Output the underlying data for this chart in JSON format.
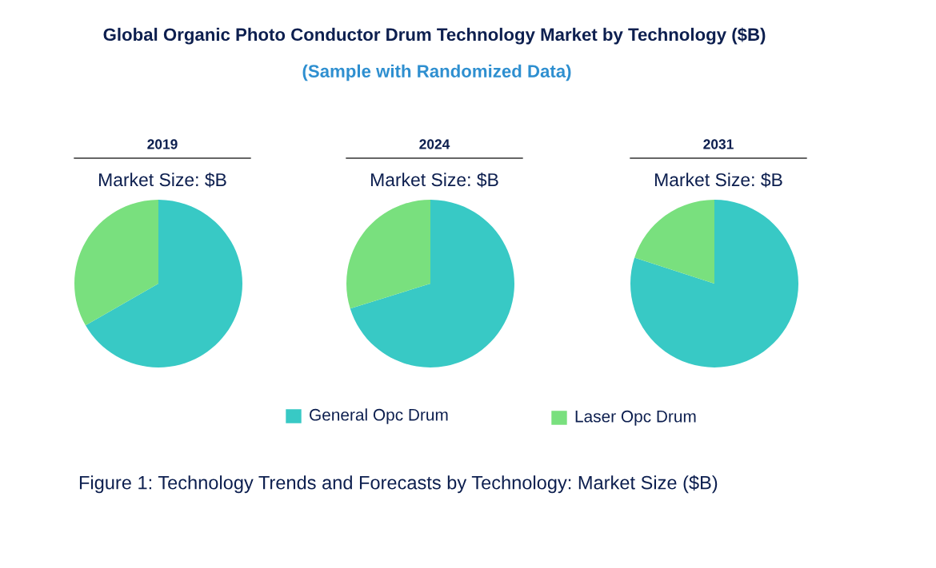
{
  "chart_data": [
    {
      "type": "pie",
      "title": "2019",
      "subtitle": "Market Size: $B",
      "categories": [
        "General Opc Drum",
        "Laser Opc Drum"
      ],
      "values": [
        66.7,
        33.3
      ],
      "colors": [
        "#38c9c5",
        "#79e07e"
      ],
      "legend": "bottom",
      "annotations": [
        "Global Organic Photo Conductor Drum Technology Market by Technology ($B)",
        "(Sample with Randomized Data)",
        "Figure 1: Technology Trends and Forecasts by Technology: Market Size ($B)"
      ]
    },
    {
      "type": "pie",
      "title": "2024",
      "subtitle": "Market Size: $B",
      "categories": [
        null,
        null
      ],
      "values": [
        70.2,
        29.8
      ],
      "colors": [
        "#38c9c5",
        "#79e07e"
      ]
    },
    {
      "type": "pie",
      "title": "2031",
      "subtitle": "Market Size: $B",
      "categories": [
        null,
        null
      ],
      "values": [
        80,
        20
      ],
      "colors": [
        "#38c9c5",
        "#79e07e"
      ]
    }
  ]
}
